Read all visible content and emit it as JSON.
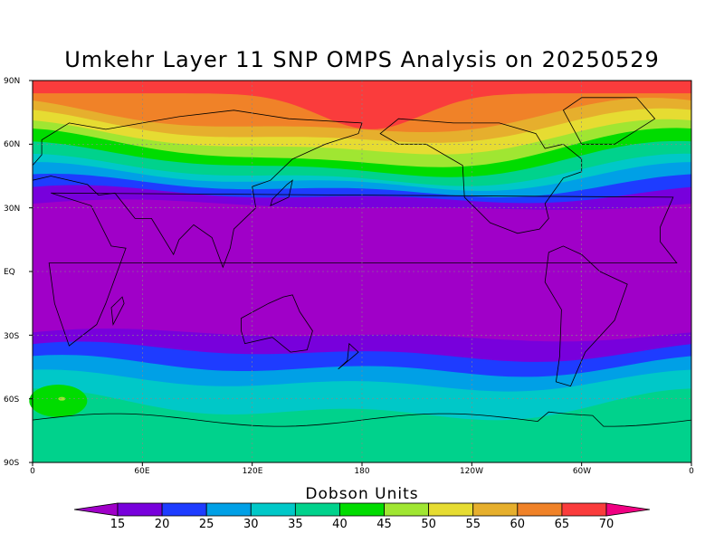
{
  "title": "Umkehr Layer 11 SNP OMPS Analysis on 20250529",
  "lat_labels": [
    "90N",
    "60N",
    "30N",
    "EQ",
    "30S",
    "60S",
    "90S"
  ],
  "lon_labels": [
    "0",
    "60E",
    "120E",
    "180",
    "120W",
    "60W",
    "0"
  ],
  "colorbar": {
    "title": "Dobson Units",
    "levels": [
      "15",
      "20",
      "25",
      "30",
      "35",
      "40",
      "45",
      "50",
      "55",
      "60",
      "65",
      "70"
    ],
    "colors": [
      "#a000c8",
      "#7800dc",
      "#1e3cff",
      "#00a0e6",
      "#00c8c8",
      "#00d28c",
      "#00dc00",
      "#a0e632",
      "#e6dc32",
      "#e6af2d",
      "#f08228",
      "#fa3c3c",
      "#f00082"
    ]
  },
  "chart_data": {
    "type": "heatmap",
    "title": "Umkehr Layer 11 SNP OMPS Analysis on 20250529",
    "units": "Dobson Units",
    "xlim": [
      0,
      360
    ],
    "ylim": [
      -90,
      90
    ],
    "grid": true,
    "description_fields": {
      "latitude_bands_DU": [
        {
          "lat": 85,
          "value": 70
        },
        {
          "lat": 75,
          "value": 62
        },
        {
          "lat": 65,
          "value": 57
        },
        {
          "lat": 55,
          "value": 47
        },
        {
          "lat": 45,
          "value": 32
        },
        {
          "lat": 38,
          "value": 22
        },
        {
          "lat": 30,
          "value": 14
        },
        {
          "lat": 0,
          "value": 12
        },
        {
          "lat": -30,
          "value": 14
        },
        {
          "lat": -40,
          "value": 20
        },
        {
          "lat": -48,
          "value": 27
        },
        {
          "lat": -55,
          "value": 33
        },
        {
          "lat": -65,
          "value": 37
        },
        {
          "lat": -80,
          "value": 38
        }
      ]
    }
  }
}
